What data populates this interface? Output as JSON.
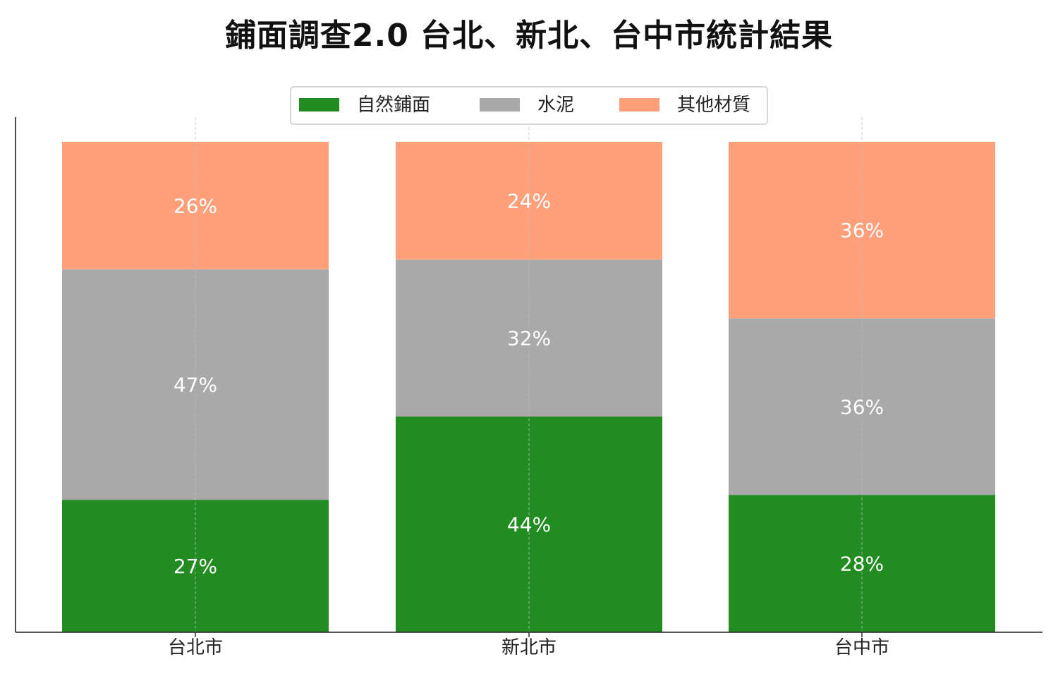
{
  "chart_data": {
    "type": "bar",
    "stacked": true,
    "title": "鋪面調查2.0  台北、新北、台中市統計結果",
    "xlabel": "",
    "ylabel": "",
    "categories": [
      "台北市",
      "新北市",
      "台中市"
    ],
    "series": [
      {
        "name": "自然鋪面",
        "color": "#228B22",
        "values": [
          27,
          44,
          28
        ],
        "labels": [
          "27%",
          "44%",
          "28%"
        ]
      },
      {
        "name": "水泥",
        "color": "#A9A9A9",
        "values": [
          47,
          32,
          36
        ],
        "labels": [
          "47%",
          "32%",
          "36%"
        ]
      },
      {
        "name": "其他材質",
        "color": "#FFA07A",
        "values": [
          26,
          24,
          36
        ],
        "labels": [
          "26%",
          "24%",
          "36%"
        ]
      }
    ],
    "ylim": [
      0,
      105
    ],
    "y_ticks_visible": false,
    "grid": "vertical-dashed",
    "legend_position": "top-center",
    "label_color": "#ffffff"
  }
}
